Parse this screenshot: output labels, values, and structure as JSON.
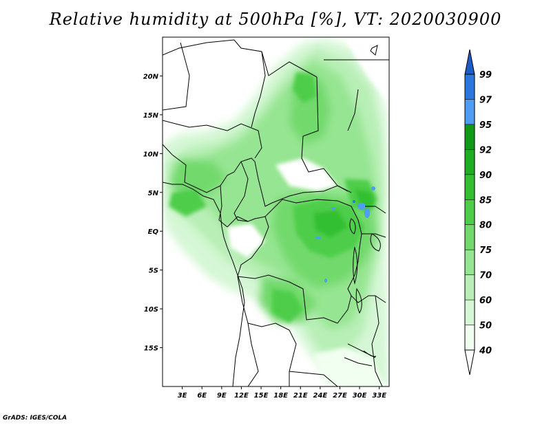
{
  "title": "Relative humidity at 500hPa [%], VT: 2020030900",
  "credit": "GrADS: IGES/COLA",
  "map": {
    "lat_ticks": [
      {
        "label": "20N",
        "lat": 20
      },
      {
        "label": "15N",
        "lat": 15
      },
      {
        "label": "10N",
        "lat": 10
      },
      {
        "label": "5N",
        "lat": 5
      },
      {
        "label": "EQ",
        "lat": 0
      },
      {
        "label": "5S",
        "lat": -5
      },
      {
        "label": "10S",
        "lat": -10
      },
      {
        "label": "15S",
        "lat": -15
      }
    ],
    "lon_ticks": [
      {
        "label": "3E",
        "lon": 3
      },
      {
        "label": "6E",
        "lon": 6
      },
      {
        "label": "9E",
        "lon": 9
      },
      {
        "label": "12E",
        "lon": 12
      },
      {
        "label": "15E",
        "lon": 15
      },
      {
        "label": "18E",
        "lon": 18
      },
      {
        "label": "21E",
        "lon": 21
      },
      {
        "label": "24E",
        "lon": 24
      },
      {
        "label": "27E",
        "lon": 27
      },
      {
        "label": "30E",
        "lon": 30
      },
      {
        "label": "33E",
        "lon": 33
      }
    ],
    "extent": {
      "lon_min": 0,
      "lon_max": 34.5,
      "lat_min": -20,
      "lat_max": 25
    }
  },
  "colorbar": {
    "levels": [
      {
        "label": "40",
        "value": 40,
        "color": "#f0fff0"
      },
      {
        "label": "50",
        "value": 50,
        "color": "#d6f7d6"
      },
      {
        "label": "60",
        "value": 60,
        "color": "#b8efb6"
      },
      {
        "label": "70",
        "value": 70,
        "color": "#96e592"
      },
      {
        "label": "75",
        "value": 75,
        "color": "#72d96c"
      },
      {
        "label": "80",
        "value": 80,
        "color": "#4ecd48"
      },
      {
        "label": "85",
        "value": 85,
        "color": "#33bf30"
      },
      {
        "label": "90",
        "value": 90,
        "color": "#1fad21"
      },
      {
        "label": "92",
        "value": 92,
        "color": "#129a16"
      },
      {
        "label": "95",
        "value": 95,
        "color": "#4f9ef2"
      },
      {
        "label": "97",
        "value": 97,
        "color": "#2a78dd"
      },
      {
        "label": "99",
        "value": 99,
        "color": "#1c5cc4"
      }
    ],
    "below_color": "#ffffff"
  }
}
